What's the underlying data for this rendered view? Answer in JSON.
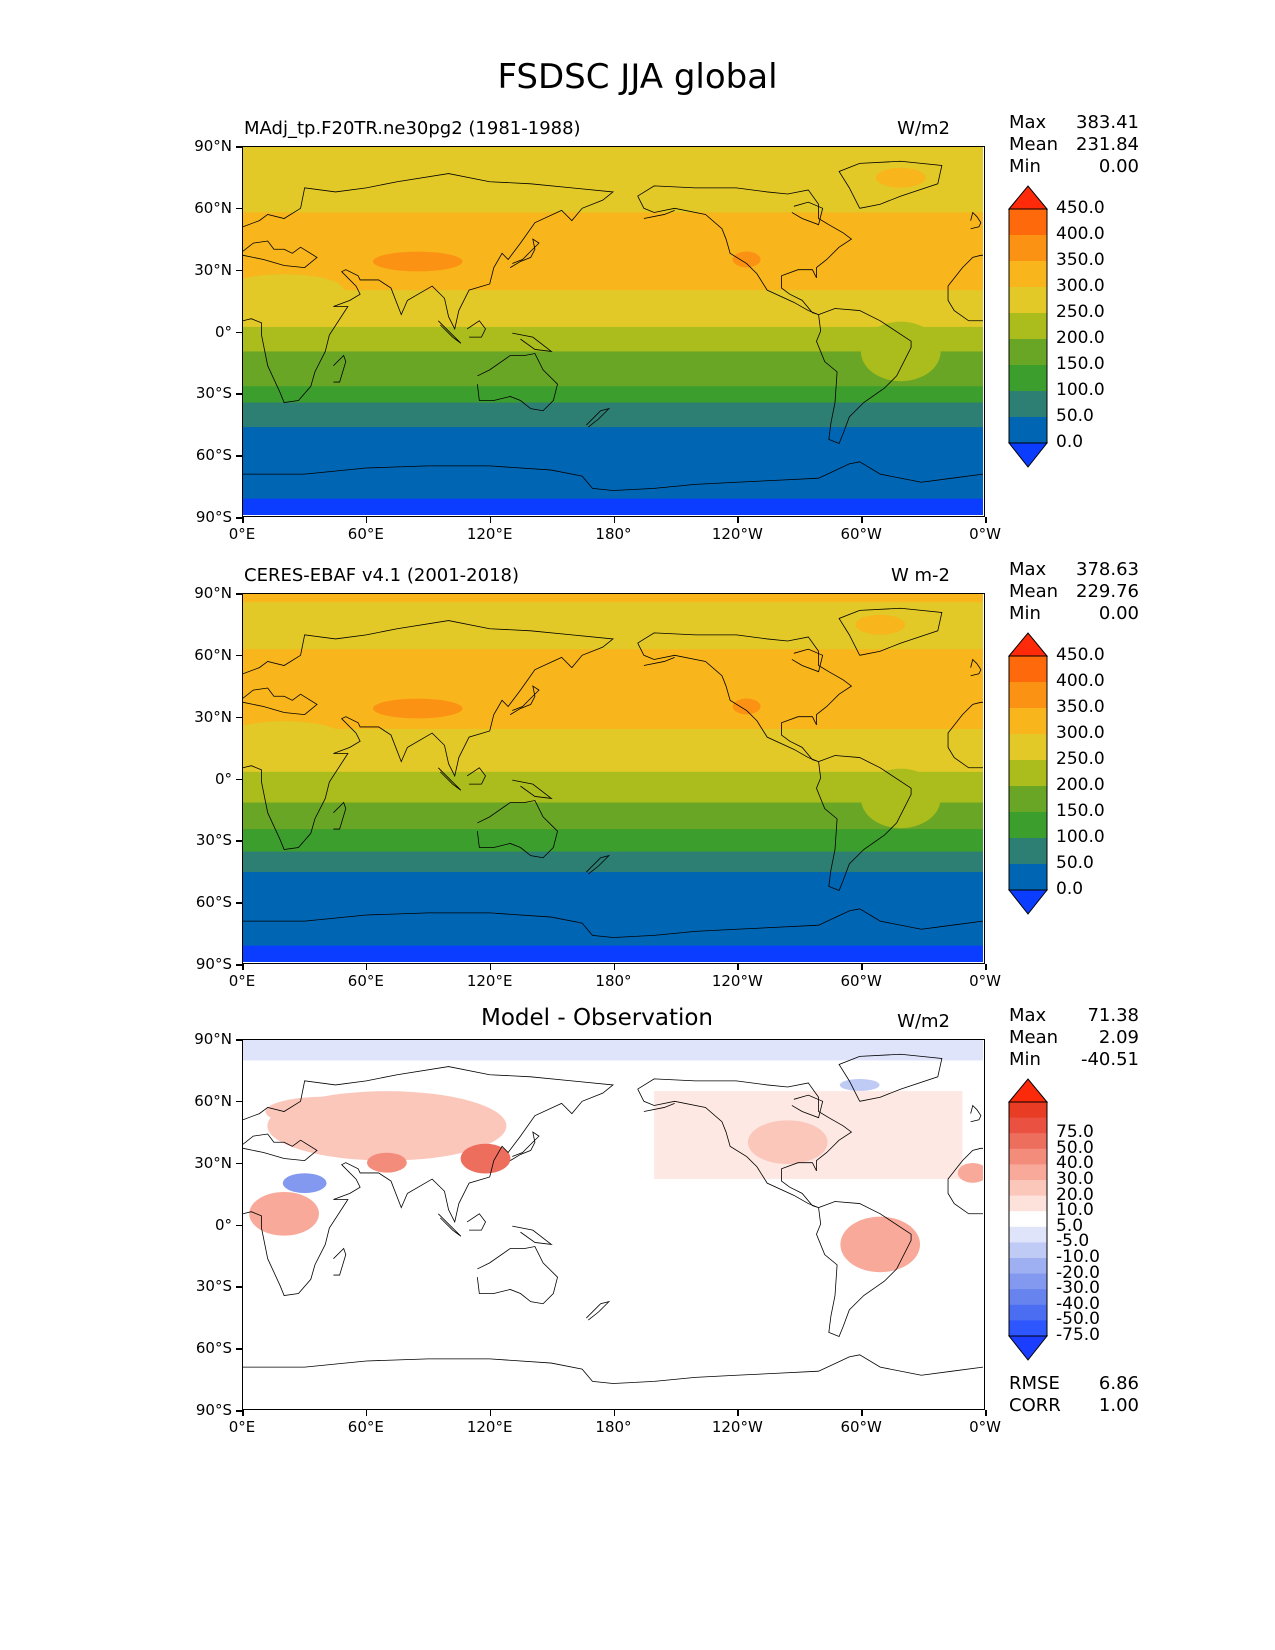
{
  "figure": {
    "title": "FSDSC JJA global"
  },
  "lat_ticks": [
    "90°N",
    "60°N",
    "30°N",
    "0°",
    "30°S",
    "60°S",
    "90°S"
  ],
  "lon_ticks": [
    "0°E",
    "60°E",
    "120°E",
    "180°",
    "120°W",
    "60°W",
    "0°W"
  ],
  "palettes": {
    "abs_colors": [
      "#0a3dff",
      "#0066b3",
      "#2e7f73",
      "#3c9e2d",
      "#6aa626",
      "#aabd1c",
      "#e2c928",
      "#f8b51c",
      "#fc9213",
      "#fd690b",
      "#ff2a0a"
    ],
    "abs_levels": [
      "0.0",
      "50.0",
      "100.0",
      "150.0",
      "200.0",
      "250.0",
      "300.0",
      "350.0",
      "400.0",
      "450.0"
    ],
    "diff_colors": [
      "#1a3dff",
      "#2e56ff",
      "#4a6df2",
      "#6683ee",
      "#8299ef",
      "#9fb0f2",
      "#bfcaf5",
      "#dfe4fb",
      "#ffffff",
      "#fde2dc",
      "#fbc7bb",
      "#f8a99a",
      "#f48c7c",
      "#ee6e5e",
      "#ea5140",
      "#e83c24",
      "#fb2a0a"
    ],
    "diff_levels": [
      "-75.0",
      "-50.0",
      "-40.0",
      "-30.0",
      "-20.0",
      "-10.0",
      "-5.0",
      "5.0",
      "10.0",
      "20.0",
      "30.0",
      "40.0",
      "50.0",
      "75.0"
    ]
  },
  "panels": [
    {
      "title": "MAdj_tp.F20TR.ne30pg2 (1981-1988)",
      "units": "W/m2",
      "stats": {
        "max_label": "Max",
        "max": "383.41",
        "mean_label": "Mean",
        "mean": "231.84",
        "min_label": "Min",
        "min": "0.00"
      }
    },
    {
      "title": "CERES-EBAF v4.1 (2001-2018)",
      "units": "W m-2",
      "stats": {
        "max_label": "Max",
        "max": "378.63",
        "mean_label": "Mean",
        "mean": "229.76",
        "min_label": "Min",
        "min": "0.00"
      }
    },
    {
      "title": "Model - Observation",
      "units": "W/m2",
      "stats": {
        "max_label": "Max",
        "max": "71.38",
        "mean_label": "Mean",
        "mean": "2.09",
        "min_label": "Min",
        "min": "-40.51"
      },
      "metrics": {
        "rmse_label": "RMSE",
        "rmse": "6.86",
        "corr_label": "CORR",
        "corr": "1.00"
      }
    }
  ]
}
